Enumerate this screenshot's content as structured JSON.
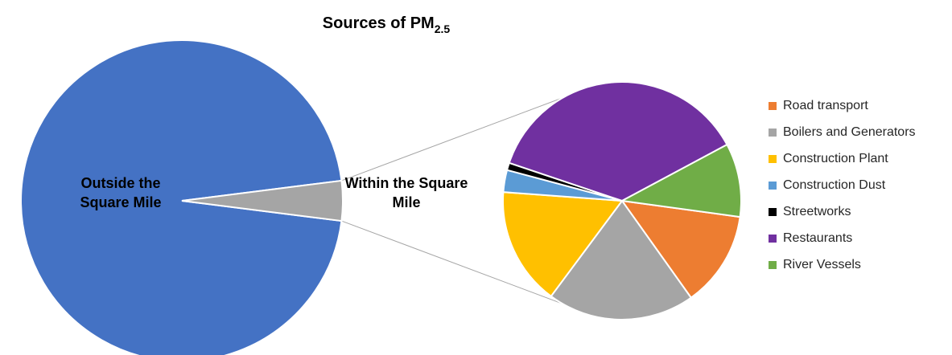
{
  "chart_data": [
    {
      "type": "pie",
      "title": "Sources of PM",
      "title_subscript": "2.5",
      "categories": [
        "Outside the Square Mile",
        "Within the Square Mile"
      ],
      "values": [
        96,
        4
      ],
      "colors": [
        "#4472c4",
        "#a5a5a5"
      ]
    },
    {
      "type": "pie",
      "categories": [
        "Road transport",
        "Boilers and Generators",
        "Construction Plant",
        "Construction Dust",
        "Streetworks",
        "Restaurants",
        "River Vessels"
      ],
      "values": [
        13,
        20,
        16,
        3,
        1,
        37,
        10
      ],
      "colors": [
        "#ed7d31",
        "#a5a5a5",
        "#ffc000",
        "#5b9bd5",
        "#000000",
        "#7030a0",
        "#70ad47"
      ],
      "legend": "right"
    }
  ]
}
